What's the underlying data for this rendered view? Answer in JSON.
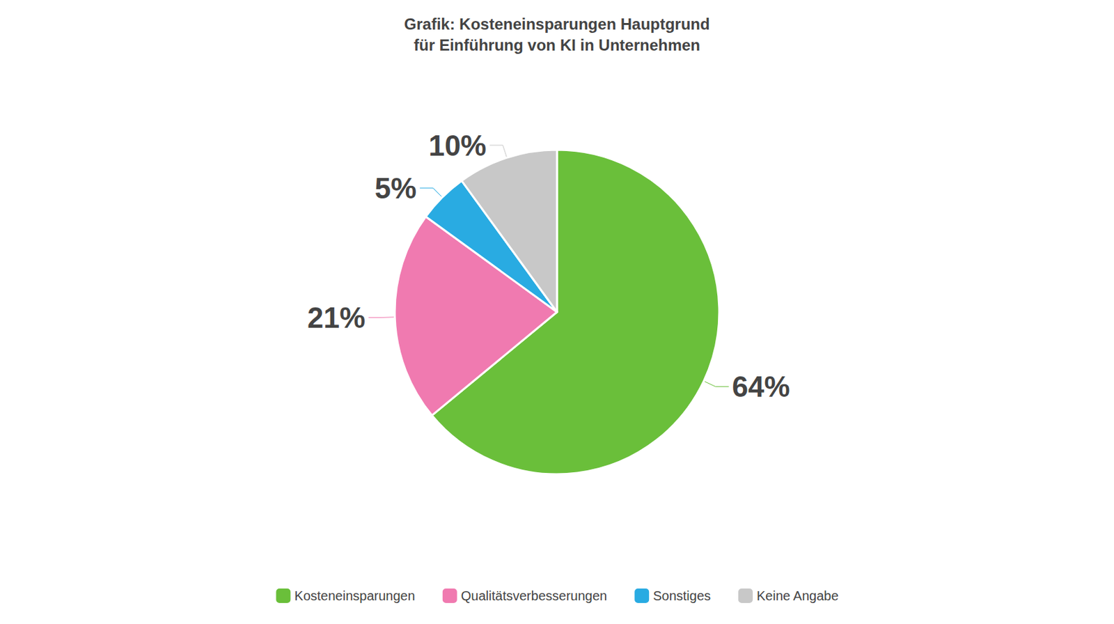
{
  "chart_data": {
    "type": "pie",
    "title": "Grafik: Kosteneinsparungen Hauptgrund\nfür Einführung von KI in Unternehmen",
    "categories": [
      "Kosteneinsparungen",
      "Qualitätsverbesserungen",
      "Sonstiges",
      "Keine Angabe"
    ],
    "values": [
      64,
      21,
      5,
      10
    ],
    "value_labels": [
      "64%",
      "21%",
      "5%",
      "10%"
    ],
    "colors": [
      "#6abf3a",
      "#f07ab0",
      "#29abe2",
      "#c8c8c8"
    ],
    "data_labels": true,
    "legend": "bottom"
  }
}
